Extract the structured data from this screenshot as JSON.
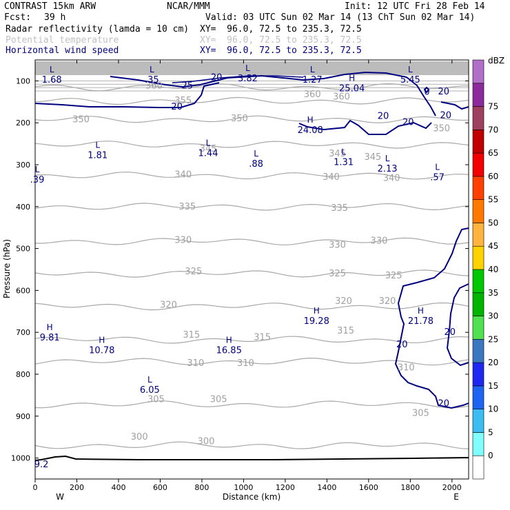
{
  "header": {
    "model": "CONTRAST 15km ARW",
    "center": "NCAR/MMM",
    "init": "Init: 12 UTC Fri 28 Feb 14",
    "fcst_label": "Fcst:",
    "fcst_value": "39 h",
    "valid": "Valid: 03 UTC Sun 02 Mar 14 (13 ChT Sun 02 Mar 14)",
    "fields": [
      {
        "name": "Radar reflectivity (lamda = 10 cm)",
        "xy": "XY=  96.0, 72.5 to 235.3, 72.5",
        "color": "#000000"
      },
      {
        "name": "Potential temperature",
        "xy": "XY=  96.0, 72.5 to 235.3, 72.5",
        "color": "#c0c0c0"
      },
      {
        "name": "Horizontal wind speed",
        "xy": "XY=  96.0, 72.5 to 235.3, 72.5",
        "color": "#000080"
      }
    ]
  },
  "chart_data": {
    "type": "cross-section contour",
    "xlabel": "Distance (km)",
    "ylabel": "Pressure (hPa)",
    "xlim": [
      0,
      2080
    ],
    "ylim": [
      1050,
      50
    ],
    "x_ticks": [
      0,
      200,
      400,
      600,
      800,
      1000,
      1200,
      1400,
      1600,
      1800,
      2000
    ],
    "y_ticks": [
      100,
      200,
      300,
      400,
      500,
      600,
      700,
      800,
      900,
      1000
    ],
    "end_labels": {
      "left": "W",
      "right": "E"
    },
    "theta_levels": [
      {
        "label": "300",
        "p": 970
      },
      {
        "label": "305",
        "p": 872
      },
      {
        "label": "310",
        "p": 770
      },
      {
        "label": "315",
        "p": 718
      },
      {
        "label": "320",
        "p": 638
      },
      {
        "label": "325",
        "p": 560
      },
      {
        "label": "330",
        "p": 483
      },
      {
        "label": "335",
        "p": 400
      },
      {
        "label": "340",
        "p": 326
      },
      {
        "label": "345",
        "p": 252
      },
      {
        "label": "350",
        "p": 192
      },
      {
        "label": "355",
        "p": 148
      },
      {
        "label": "360",
        "p": 115
      }
    ],
    "theta_labels": [
      {
        "text": "300",
        "x": 500,
        "p": 950
      },
      {
        "text": "300",
        "x": 820,
        "p": 960
      },
      {
        "text": "305",
        "x": 580,
        "p": 860
      },
      {
        "text": "305",
        "x": 880,
        "p": 860
      },
      {
        "text": "305",
        "x": 1850,
        "p": 893
      },
      {
        "text": "310",
        "x": 770,
        "p": 774
      },
      {
        "text": "310",
        "x": 1010,
        "p": 774
      },
      {
        "text": "310",
        "x": 1780,
        "p": 784
      },
      {
        "text": "315",
        "x": 750,
        "p": 706
      },
      {
        "text": "315",
        "x": 1090,
        "p": 712
      },
      {
        "text": "315",
        "x": 1490,
        "p": 696
      },
      {
        "text": "320",
        "x": 640,
        "p": 635
      },
      {
        "text": "320",
        "x": 1480,
        "p": 626
      },
      {
        "text": "320",
        "x": 1690,
        "p": 626
      },
      {
        "text": "325",
        "x": 760,
        "p": 555
      },
      {
        "text": "325",
        "x": 1450,
        "p": 560
      },
      {
        "text": "325",
        "x": 1720,
        "p": 565
      },
      {
        "text": "330",
        "x": 710,
        "p": 480
      },
      {
        "text": "330",
        "x": 1450,
        "p": 492
      },
      {
        "text": "330",
        "x": 1650,
        "p": 482
      },
      {
        "text": "335",
        "x": 730,
        "p": 400
      },
      {
        "text": "335",
        "x": 1460,
        "p": 404
      },
      {
        "text": "340",
        "x": 710,
        "p": 324
      },
      {
        "text": "340",
        "x": 1420,
        "p": 330
      },
      {
        "text": "340",
        "x": 1710,
        "p": 332
      },
      {
        "text": "345",
        "x": 830,
        "p": 262
      },
      {
        "text": "345",
        "x": 1450,
        "p": 274
      },
      {
        "text": "345",
        "x": 1620,
        "p": 282
      },
      {
        "text": "350",
        "x": 220,
        "p": 192
      },
      {
        "text": "350",
        "x": 980,
        "p": 190
      },
      {
        "text": "350",
        "x": 1950,
        "p": 214
      },
      {
        "text": "355",
        "x": 710,
        "p": 147
      },
      {
        "text": "360",
        "x": 570,
        "p": 112
      },
      {
        "text": "360",
        "x": 1330,
        "p": 132
      },
      {
        "text": "360",
        "x": 1470,
        "p": 138
      }
    ],
    "wind_labels": [
      {
        "text": "20",
        "x": 680,
        "p": 160
      },
      {
        "text": "20",
        "x": 870,
        "p": 90
      },
      {
        "text": "25",
        "x": 730,
        "p": 110
      },
      {
        "text": "20",
        "x": 1670,
        "p": 182
      },
      {
        "text": "20",
        "x": 1790,
        "p": 197
      },
      {
        "text": "20",
        "x": 1960,
        "p": 124
      },
      {
        "text": "20",
        "x": 1970,
        "p": 181
      },
      {
        "text": "20",
        "x": 1760,
        "p": 728
      },
      {
        "text": "20",
        "x": 1990,
        "p": 698
      },
      {
        "text": "20",
        "x": 1960,
        "p": 868
      },
      {
        "text": "0",
        "x": 1880,
        "p": 125
      }
    ],
    "extrema": [
      {
        "type": "L",
        "value": "1.68",
        "x": 80,
        "p": 80
      },
      {
        "type": "L",
        "value": ".35",
        "x": 560,
        "p": 80
      },
      {
        "type": "L",
        "value": "3.82",
        "x": 1020,
        "p": 76
      },
      {
        "type": "L",
        "value": "1.27",
        "x": 1330,
        "p": 80
      },
      {
        "type": "H",
        "value": "25.04",
        "x": 1520,
        "p": 100
      },
      {
        "type": "L",
        "value": "5.45",
        "x": 1800,
        "p": 80
      },
      {
        "type": "H",
        "value": "24.08",
        "x": 1320,
        "p": 200
      },
      {
        "type": "L",
        "value": "1.81",
        "x": 300,
        "p": 260
      },
      {
        "type": "L",
        "value": "1.44",
        "x": 830,
        "p": 255
      },
      {
        "type": "L",
        "value": ".88",
        "x": 1060,
        "p": 280
      },
      {
        "type": "L",
        "value": "1.31",
        "x": 1480,
        "p": 276
      },
      {
        "type": "L",
        "value": "2.13",
        "x": 1690,
        "p": 292
      },
      {
        "type": "L",
        "value": ".57",
        "x": 1930,
        "p": 312
      },
      {
        "type": "L",
        "value": ".39",
        "x": 10,
        "p": 318
      },
      {
        "type": "H",
        "value": "9.81",
        "x": 70,
        "p": 695
      },
      {
        "type": "H",
        "value": "10.78",
        "x": 320,
        "p": 725
      },
      {
        "type": "H",
        "value": "16.85",
        "x": 930,
        "p": 725
      },
      {
        "type": "H",
        "value": "19.28",
        "x": 1350,
        "p": 655
      },
      {
        "type": "H",
        "value": "21.78",
        "x": 1850,
        "p": 655
      },
      {
        "type": "L",
        "value": "6.05",
        "x": 550,
        "p": 820
      },
      {
        "type": "",
        "value": "9.2",
        "x": 30,
        "p": 997
      }
    ]
  },
  "colorbar": {
    "unit": "dBZ",
    "levels": [
      "0",
      "5",
      "10",
      "15",
      "20",
      "25",
      "30",
      "35",
      "40",
      "45",
      "50",
      "55",
      "60",
      "65",
      "70",
      "75"
    ],
    "colors": [
      "#ffffff",
      "#80ffff",
      "#3cbcf0",
      "#1e64f0",
      "#1e28f0",
      "#3c78c0",
      "#50e050",
      "#00b400",
      "#00c800",
      "#ffd200",
      "#ffb440",
      "#ff7800",
      "#ff4000",
      "#f00000",
      "#c00000",
      "#a04060",
      "#8c2c9c",
      "#b070c8"
    ]
  }
}
